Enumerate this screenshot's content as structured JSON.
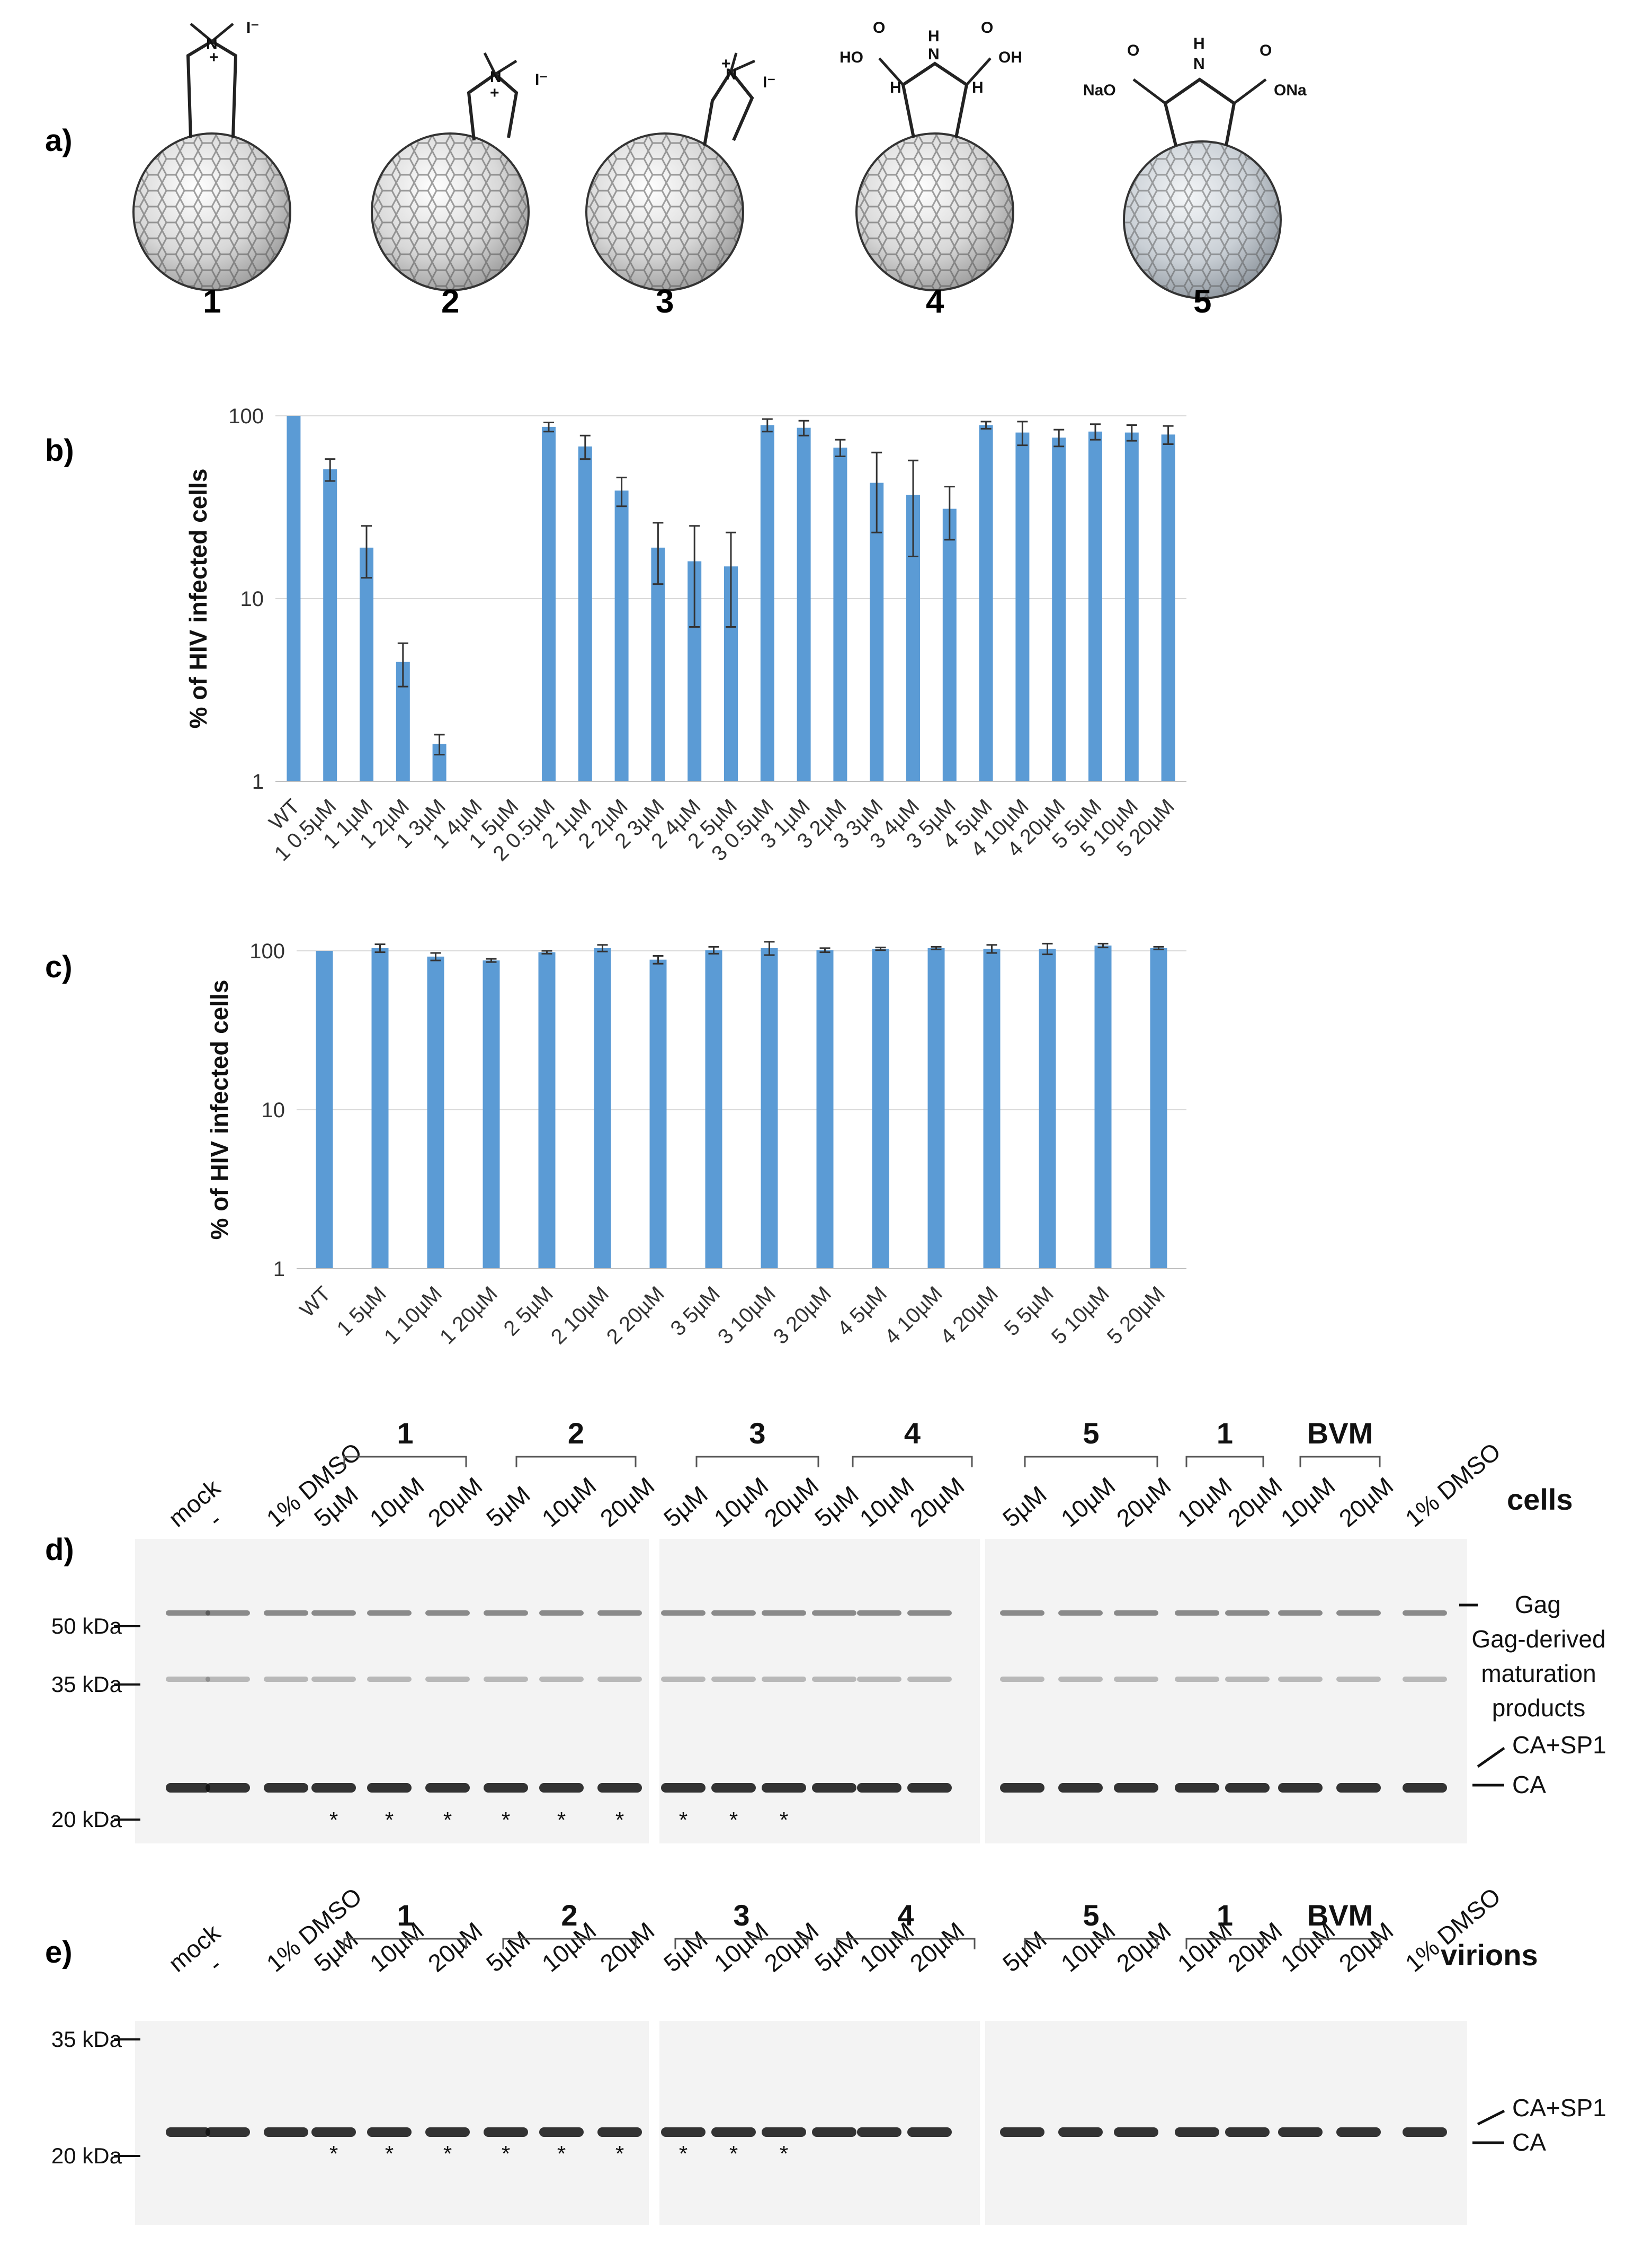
{
  "panel_labels": {
    "a": "a)",
    "b": "b)",
    "c": "c)",
    "d": "d)",
    "e": "e)"
  },
  "compounds": [
    {
      "number": "1",
      "label_top": "N",
      "charge": "+",
      "counterion": "I⁻"
    },
    {
      "number": "2",
      "label_top": "N",
      "charge": "+",
      "counterion": "I⁻"
    },
    {
      "number": "3",
      "label_top": "N",
      "charge": "+",
      "counterion": "I⁻"
    },
    {
      "number": "4",
      "groups": [
        "HO",
        "O",
        "H",
        "N",
        "H",
        "O",
        "OH",
        "H"
      ]
    },
    {
      "number": "5",
      "groups": [
        "NaO",
        "O",
        "H",
        "N",
        "O",
        "ONa"
      ]
    }
  ],
  "chart_data": [
    {
      "type": "bar",
      "panel": "b",
      "ylabel": "% of HIV infected cells",
      "yscale": "log",
      "ylim": [
        1,
        100
      ],
      "yticks": [
        "1",
        "10",
        "100"
      ],
      "grid": true,
      "color": "#5b9bd5",
      "categories": [
        "WT",
        "1 0.5µM",
        "1 1µM",
        "1 2µM",
        "1 3µM",
        "1 4µM",
        "1 5µM",
        "2 0.5µM",
        "2 1µM",
        "2 2µM",
        "2 3µM",
        "2 4µM",
        "2 5µM",
        "3 0.5µM",
        "3 1µM",
        "3 2µM",
        "3 3µM",
        "3 4µM",
        "3 5µM",
        "4 5µM",
        "4 10µM",
        "4 20µM",
        "5 5µM",
        "5 10µM",
        "5 20µM"
      ],
      "values": [
        100,
        51,
        19,
        4.5,
        1.6,
        null,
        null,
        87,
        68,
        39,
        19,
        16,
        15,
        89,
        86,
        67,
        43,
        37,
        31,
        89,
        81,
        76,
        82,
        81,
        79
      ],
      "errors": [
        0,
        7,
        6,
        1.2,
        0.2,
        null,
        null,
        5,
        10,
        7,
        7,
        9,
        8,
        7,
        8,
        7,
        20,
        20,
        10,
        4,
        12,
        8,
        8,
        8,
        9
      ]
    },
    {
      "type": "bar",
      "panel": "c",
      "ylabel": "% of HIV infected cells",
      "yscale": "log",
      "ylim": [
        1,
        100
      ],
      "yticks": [
        "1",
        "10",
        "100"
      ],
      "grid": true,
      "color": "#5b9bd5",
      "categories": [
        "WT",
        "1 5µM",
        "1 10µM",
        "1 20µM",
        "2 5µM",
        "2 10µM",
        "2 20µM",
        "3 5µM",
        "3 10µM",
        "3 20µM",
        "4 5µM",
        "4 10µM",
        "4 20µM",
        "5 5µM",
        "5 10µM",
        "5 20µM"
      ],
      "values": [
        100,
        104,
        92,
        87,
        98,
        104,
        88,
        101,
        104,
        101,
        103,
        104,
        103,
        103,
        108,
        104
      ],
      "errors": [
        0,
        6,
        5,
        2,
        2,
        5,
        5,
        5,
        10,
        3,
        2,
        2,
        6,
        8,
        3,
        2
      ]
    }
  ],
  "blot_d": {
    "title": "cells",
    "lanes_left": [
      "mock",
      "-",
      "1% DMSO",
      "5µM",
      "10µM",
      "20µM",
      "5µM",
      "10µM",
      "20µM"
    ],
    "lanes_middle": [
      "5µM",
      "10µM",
      "20µM",
      "5µM",
      "10µM",
      "20µM"
    ],
    "lanes_right": [
      "5µM",
      "10µM",
      "20µM",
      "10µM",
      "20µM",
      "10µM",
      "20µM",
      "1% DMSO"
    ],
    "groups": [
      "1",
      "2",
      "3",
      "4",
      "5",
      "1",
      "BVM"
    ],
    "markers": [
      "50 kDa",
      "35 kDa",
      "20 kDa"
    ],
    "annotations": [
      "Gag",
      "Gag-derived",
      "maturation",
      "products",
      "CA+SP1",
      "CA"
    ],
    "asterisk": "*"
  },
  "blot_e": {
    "title": "virions",
    "lanes_left": [
      "mock",
      "-",
      "1% DMSO",
      "5µM",
      "10µM",
      "20µM",
      "5µM",
      "10µM",
      "20µM"
    ],
    "lanes_middle": [
      "5µM",
      "10µM",
      "20µM",
      "5µM",
      "10µM",
      "20µM"
    ],
    "lanes_right": [
      "5µM",
      "10µM",
      "20µM",
      "10µM",
      "20µM",
      "10µM",
      "20µM",
      "1% DMSO"
    ],
    "groups": [
      "1",
      "2",
      "3",
      "4",
      "5",
      "1",
      "BVM"
    ],
    "markers": [
      "35 kDa",
      "20 kDa"
    ],
    "annotations": [
      "CA+SP1",
      "CA"
    ],
    "asterisk": "*"
  }
}
